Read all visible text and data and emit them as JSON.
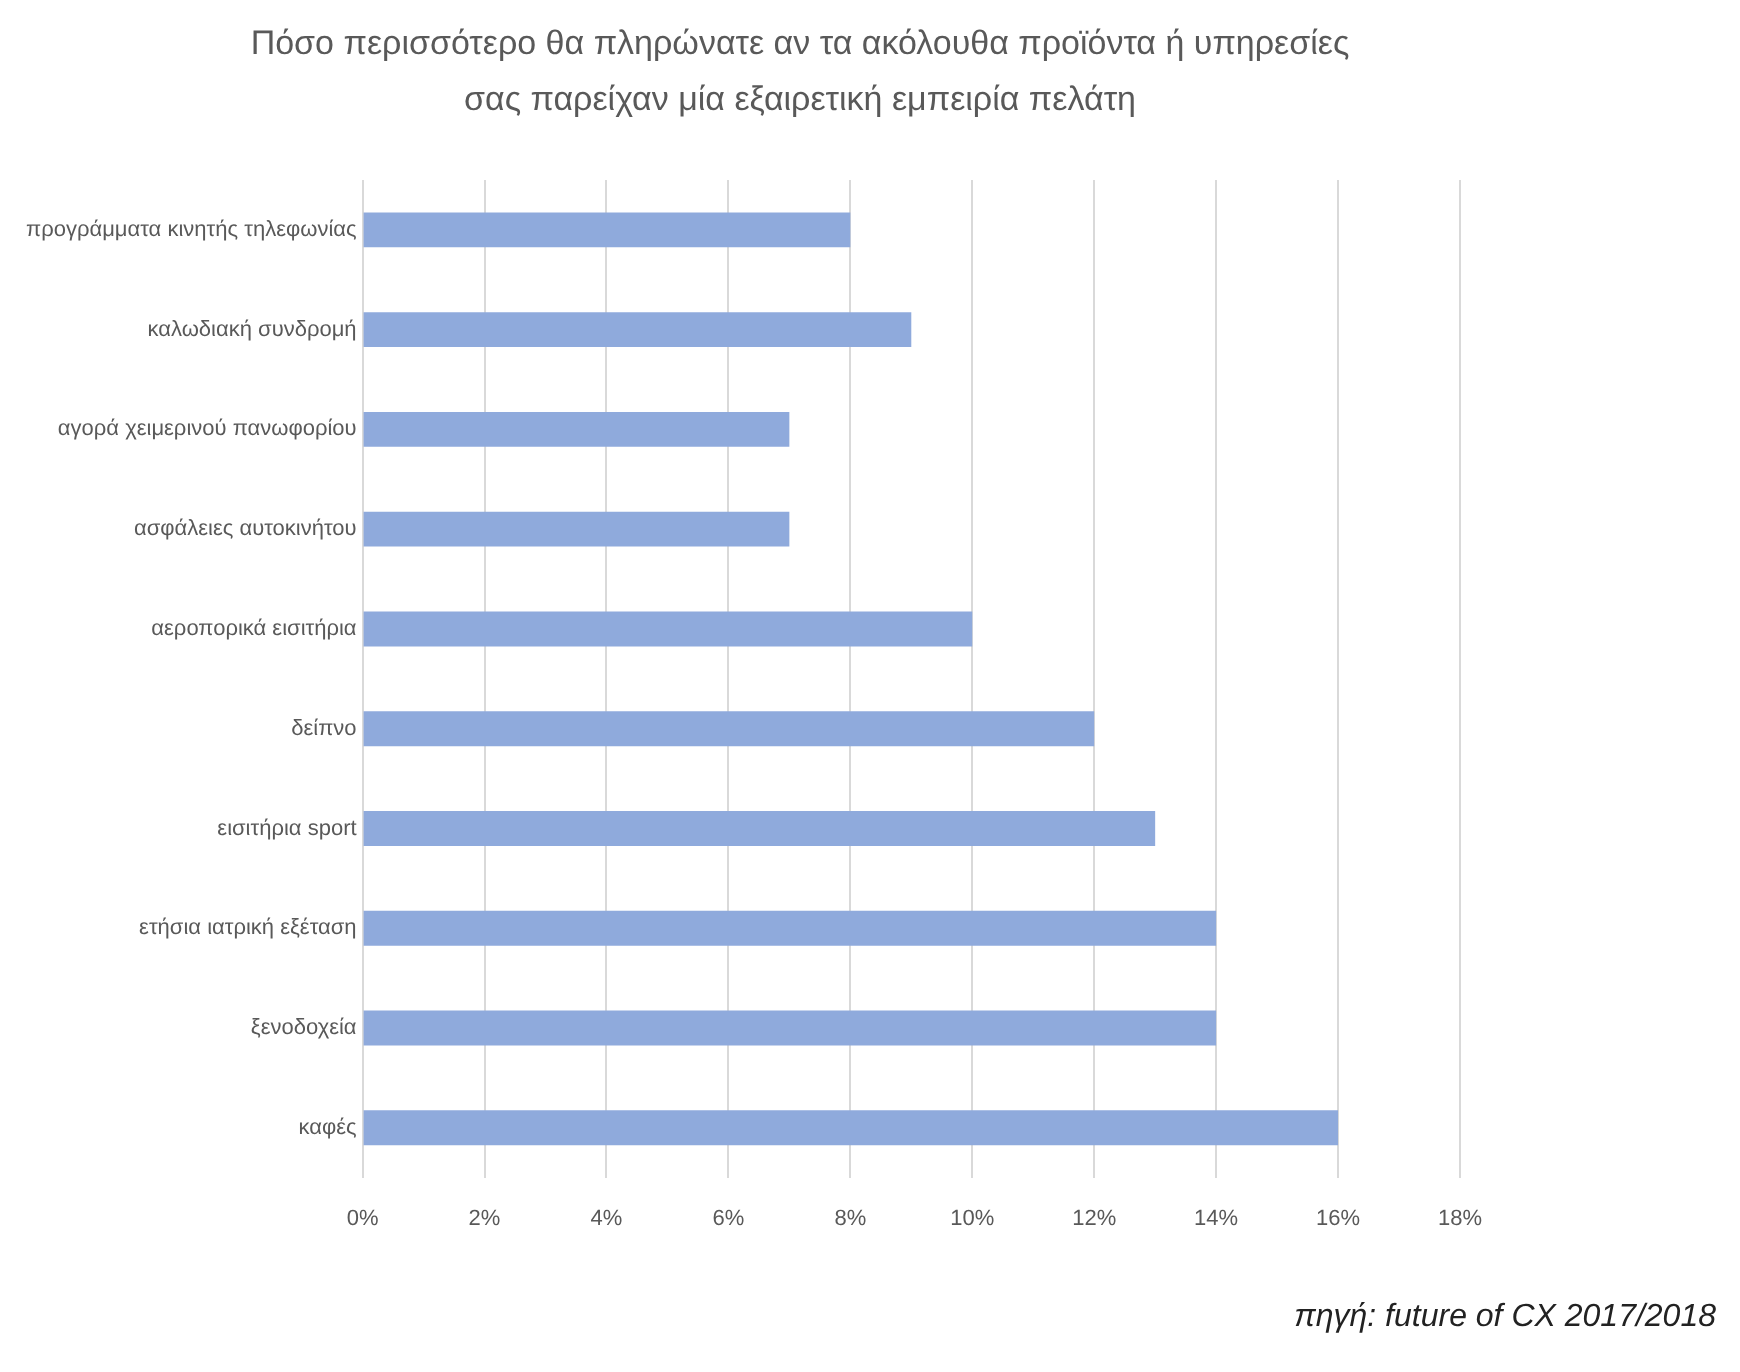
{
  "chart_data": {
    "type": "bar",
    "orientation": "horizontal",
    "title": "Πόσο περισσότερο θα πληρώνατε  αν τα ακόλουθα προϊόντα ή υπηρεσίες σας παρείχαν μία εξαιρετική εμπειρία πελάτη",
    "categories": [
      "προγράμματα κινητής τηλεφωνίας",
      "καλωδιακή συνδρομή",
      "αγορά χειμερινού πανωφορίου",
      "ασφάλειες αυτοκινήτου",
      "αεροπορικά εισιτήρια",
      "δείπνο",
      "εισιτήρια sport",
      "ετήσια ιατρική εξέταση",
      "ξενοδοχεία",
      "καφές"
    ],
    "values": [
      8,
      9,
      7,
      7,
      10,
      12,
      13,
      14,
      14,
      16
    ],
    "color": "#8faadc",
    "xlim": [
      0,
      18
    ],
    "xticks": [
      {
        "value": 0,
        "label": "0%"
      },
      {
        "value": 2,
        "label": "2%"
      },
      {
        "value": 4,
        "label": "4%"
      },
      {
        "value": 6,
        "label": "6%"
      },
      {
        "value": 8,
        "label": "8%"
      },
      {
        "value": 10,
        "label": "10%"
      },
      {
        "value": 12,
        "label": "12%"
      },
      {
        "value": 14,
        "label": "14%"
      },
      {
        "value": 16,
        "label": "16%"
      },
      {
        "value": 18,
        "label": "18%"
      }
    ],
    "grid": "x",
    "annotations": [
      "πηγή: future of CX 2017/2018"
    ]
  }
}
